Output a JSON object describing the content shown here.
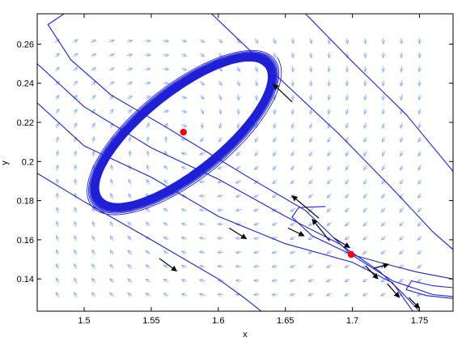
{
  "chart_data": {
    "type": "line",
    "title": "",
    "xlabel": "x",
    "ylabel": "y",
    "xlim": [
      1.465,
      1.775
    ],
    "ylim": [
      0.1235,
      0.2755
    ],
    "xticks": [
      1.5,
      1.55,
      1.6,
      1.65,
      1.7,
      1.75
    ],
    "xtick_labels": [
      "1.5",
      "1.55",
      "1.6",
      "1.65",
      "1.7",
      "1.75"
    ],
    "yticks": [
      0.14,
      0.16,
      0.18,
      0.2,
      0.22,
      0.24,
      0.26
    ],
    "ytick_labels": [
      "0.14",
      "0.16",
      "0.18",
      "0.2",
      "0.22",
      "0.24",
      "0.26"
    ],
    "grid": false,
    "colors": {
      "trajectory": "#1f1fd6",
      "field_arrow": "#8fb3ee",
      "direction_arrow": "#000000",
      "equilibrium": "#ff0000"
    },
    "vector_field": {
      "x_min": 1.48,
      "x_max": 1.76,
      "x_step": 0.0135,
      "y_min": 0.132,
      "y_max": 0.268,
      "y_step": 0.0072,
      "center": [
        1.574,
        0.215
      ],
      "lambda": -0.4
    },
    "equilibria": [
      {
        "name": "center",
        "x": 1.574,
        "y": 0.215
      },
      {
        "name": "saddle",
        "x": 1.699,
        "y": 0.1525
      }
    ],
    "spiral": {
      "center": [
        1.574,
        0.215
      ],
      "angle_deg": 38.7,
      "outer_axes": [
        0.0895,
        0.0252
      ],
      "inner_axes": [
        0.0777,
        0.0185
      ],
      "turns": 22
    },
    "series": [
      {
        "points": [
          [
            1.465,
            0.194
          ],
          [
            1.5,
            0.1795
          ],
          [
            1.55,
            0.16
          ],
          [
            1.6,
            0.14
          ],
          [
            1.62,
            0.13
          ],
          [
            1.632,
            0.1235
          ]
        ]
      },
      {
        "points": [
          [
            1.465,
            0.23
          ],
          [
            1.5,
            0.208
          ],
          [
            1.55,
            0.192
          ],
          [
            1.6,
            0.172
          ],
          [
            1.65,
            0.158
          ],
          [
            1.7,
            0.1485
          ],
          [
            1.73,
            0.138
          ],
          [
            1.745,
            0.1235
          ]
        ]
      },
      {
        "points": [
          [
            1.465,
            0.25
          ],
          [
            1.5,
            0.228
          ],
          [
            1.55,
            0.207
          ],
          [
            1.6,
            0.191
          ],
          [
            1.65,
            0.172
          ],
          [
            1.69,
            0.158
          ],
          [
            1.72,
            0.144
          ],
          [
            1.737,
            0.133
          ],
          [
            1.75,
            0.1235
          ]
        ]
      },
      {
        "points": [
          [
            1.665,
            0.2755
          ],
          [
            1.7,
            0.251
          ],
          [
            1.74,
            0.224
          ],
          [
            1.775,
            0.195
          ]
        ]
      },
      {
        "points": [
          [
            1.595,
            0.2755
          ],
          [
            1.64,
            0.246
          ],
          [
            1.69,
            0.214
          ],
          [
            1.73,
            0.186
          ],
          [
            1.76,
            0.164
          ],
          [
            1.775,
            0.155
          ]
        ]
      },
      {
        "points": [
          [
            1.485,
            0.2755
          ],
          [
            1.473,
            0.27
          ],
          [
            1.49,
            0.252
          ],
          [
            1.52,
            0.234
          ],
          [
            1.56,
            0.218
          ],
          [
            1.62,
            0.193
          ],
          [
            1.665,
            0.175
          ],
          [
            1.699,
            0.1525
          ],
          [
            1.73,
            0.139
          ],
          [
            1.76,
            0.132
          ],
          [
            1.775,
            0.131
          ]
        ]
      },
      {
        "points": [
          [
            1.775,
            0.13
          ],
          [
            1.755,
            0.1315
          ],
          [
            1.74,
            0.1345
          ],
          [
            1.744,
            0.139
          ],
          [
            1.76,
            0.1365
          ],
          [
            1.775,
            0.1355
          ]
        ]
      },
      {
        "points": [
          [
            1.775,
            0.14
          ],
          [
            1.748,
            0.1435
          ],
          [
            1.72,
            0.1485
          ],
          [
            1.699,
            0.1525
          ],
          [
            1.67,
            0.162
          ],
          [
            1.655,
            0.1715
          ],
          [
            1.66,
            0.1765
          ],
          [
            1.68,
            0.177
          ]
        ]
      }
    ],
    "direction_arrows": [
      {
        "from": [
          1.655,
          0.2305
        ],
        "to": [
          1.641,
          0.2395
        ]
      },
      {
        "from": [
          1.675,
          0.171
        ],
        "to": [
          1.655,
          0.1825
        ]
      },
      {
        "from": [
          1.683,
          0.1595
        ],
        "to": [
          1.67,
          0.1705
        ]
      },
      {
        "from": [
          1.716,
          0.1455
        ],
        "to": [
          1.727,
          0.1475
        ]
      },
      {
        "from": [
          1.686,
          0.161
        ],
        "to": [
          1.698,
          0.156
        ]
      },
      {
        "from": [
          1.652,
          0.166
        ],
        "to": [
          1.664,
          0.162
        ]
      },
      {
        "from": [
          1.608,
          0.166
        ],
        "to": [
          1.621,
          0.1605
        ]
      },
      {
        "from": [
          1.556,
          0.1505
        ],
        "to": [
          1.569,
          0.144
        ]
      },
      {
        "from": [
          1.71,
          0.1465
        ],
        "to": [
          1.719,
          0.14
        ]
      },
      {
        "from": [
          1.726,
          0.1375
        ],
        "to": [
          1.735,
          0.1305
        ]
      },
      {
        "from": [
          1.742,
          0.1305
        ],
        "to": [
          1.75,
          0.125
        ]
      }
    ]
  }
}
